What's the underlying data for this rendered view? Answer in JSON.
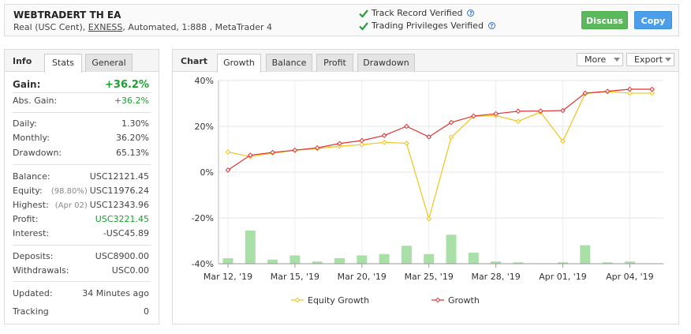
{
  "header": {
    "account_name": "WEBTRADERT TH EA",
    "account_type": "Real (USC Cent),",
    "broker": "EXNESS",
    "account_details": ", Automated, 1:888 , MetaTrader 4",
    "verify_1": "Track Record Verified",
    "verify_2": "Trading Privileges Verified",
    "discuss_label": "Discuss",
    "copy_label": "Copy",
    "check_color": "#2e9c3c",
    "discuss_color": "#5cb85c",
    "copy_color": "#4c9ee8"
  },
  "left_panel": {
    "title": "Info",
    "tabs": [
      "Stats",
      "General"
    ],
    "gain": {
      "label": "Gain:",
      "value": "+36.2%"
    },
    "abs_gain": {
      "label": "Abs. Gain:",
      "value": "+36.2%"
    },
    "daily": {
      "label": "Daily:",
      "value": "1.30%"
    },
    "monthly": {
      "label": "Monthly:",
      "value": "36.20%"
    },
    "drawdown": {
      "label": "Drawdown:",
      "value": "65.13%"
    },
    "balance": {
      "label": "Balance:",
      "value": "USC12121.45"
    },
    "equity": {
      "label": "Equity:",
      "sub": "(98.80%)",
      "value": "USC11976.24"
    },
    "highest": {
      "label": "Highest:",
      "sub": "(Apr 02)",
      "value": "USC12343.96"
    },
    "profit": {
      "label": "Profit:",
      "value": "USC3221.45"
    },
    "interest": {
      "label": "Interest:",
      "value": "-USC45.89"
    },
    "deposits": {
      "label": "Deposits:",
      "value": "USC8900.00"
    },
    "withdrawals": {
      "label": "Withdrawals:",
      "value": "USC0.00"
    },
    "updated": {
      "label": "Updated:",
      "value": "34 Minutes ago"
    },
    "tracking": {
      "label": "Tracking",
      "value": "0"
    }
  },
  "chart_panel": {
    "title": "Chart",
    "tabs": [
      "Growth",
      "Balance",
      "Profit",
      "Drawdown"
    ],
    "more_label": "More",
    "export_label": "Export"
  },
  "chart_data": {
    "type": "line",
    "x_tick_labels": [
      "Mar 12, '19",
      "Mar 15, '19",
      "Mar 20, '19",
      "Mar 25, '19",
      "Mar 28, '19",
      "Apr 01, '19",
      "Apr 04, '19"
    ],
    "x_tick_index": [
      0,
      3,
      6,
      9,
      12,
      15,
      18
    ],
    "y_tick_labels": [
      "40%",
      "20%",
      "0%",
      "-20%",
      "-40%"
    ],
    "ylim": [
      -40,
      40
    ],
    "grid": true,
    "legend_position": "bottom",
    "series": [
      {
        "name": "Equity Growth",
        "color": "#f0c419",
        "values": [
          8.8,
          6.8,
          8.3,
          9.5,
          10.3,
          11.3,
          12.0,
          13.0,
          12.6,
          -20.4,
          15.2,
          24.4,
          24.7,
          22.2,
          26.2,
          13.5,
          34.3,
          35.1,
          34.5,
          34.5
        ]
      },
      {
        "name": "Growth",
        "color": "#e03131",
        "values": [
          0.9,
          7.4,
          8.6,
          9.6,
          10.6,
          12.5,
          13.8,
          16.0,
          20.0,
          15.4,
          21.7,
          24.5,
          25.5,
          26.6,
          26.7,
          26.9,
          34.5,
          35.3,
          36.2,
          36.2
        ]
      },
      {
        "name": "Volume",
        "color": "#a8e0a8",
        "values": [
          2,
          12,
          1.5,
          3,
          0.8,
          2,
          3,
          3.5,
          6.5,
          3.5,
          10.5,
          4,
          0.8,
          0.5,
          0,
          0.5,
          6.7,
          0.5,
          0.8,
          0
        ]
      }
    ]
  }
}
